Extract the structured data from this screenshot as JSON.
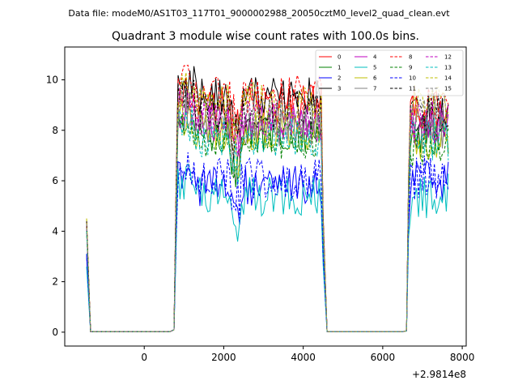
{
  "page": {
    "suptitle": "Data file: modeM0/AS1T03_117T01_9000002988_20050cztM0_level2_quad_clean.evt"
  },
  "chart_data": {
    "type": "line",
    "title": "Quadrant 3 module wise count rates with 100.0s bins.",
    "xlabel": "",
    "ylabel": "",
    "offset_label": "+2.9814e8",
    "xlim": [
      -2000,
      8100
    ],
    "ylim": [
      -0.55,
      11.3
    ],
    "xticks": [
      0,
      2000,
      4000,
      6000,
      8000
    ],
    "xtick_labels": [
      "0",
      "2000",
      "4000",
      "6000",
      "8000"
    ],
    "yticks": [
      0,
      2,
      4,
      6,
      8,
      10
    ],
    "ytick_labels": [
      "0",
      "2",
      "4",
      "6",
      "8",
      "10"
    ],
    "legend_position": "upper-right",
    "x": {
      "seg1": [
        -1450,
        -1350,
        -1250,
        -1150,
        -1050,
        -950,
        -850,
        -750,
        -650,
        -550,
        -450,
        -350,
        -250,
        -150,
        -50,
        50,
        150,
        250,
        350,
        450,
        550,
        650,
        750
      ],
      "seg2": [
        750,
        800,
        850,
        900,
        950,
        1000,
        1050,
        1100,
        1150,
        1200,
        1250,
        1300,
        1350,
        1400,
        1450,
        1500,
        1550,
        1600,
        1650,
        1700,
        1750,
        1800,
        1850,
        1900,
        1950,
        2000,
        2050,
        2100,
        2150,
        2200,
        2250,
        2300,
        2350,
        2400,
        2450,
        2500,
        2550,
        2600,
        2650,
        2700,
        2750,
        2800,
        2850,
        2900,
        2950,
        3000,
        3050,
        3100,
        3150,
        3200,
        3250,
        3300,
        3350,
        3400,
        3450,
        3500,
        3550,
        3600,
        3650,
        3700,
        3750,
        3800,
        3850,
        3900,
        3950,
        4000,
        4050,
        4100,
        4150,
        4200,
        4250,
        4300,
        4350,
        4400,
        4450,
        4500
      ],
      "seg3": [
        4500,
        4600,
        4700,
        4800,
        4900,
        5000,
        5100,
        5200,
        5300,
        5400,
        5500,
        5600,
        5700,
        5800,
        5900,
        6000,
        6100,
        6200,
        6300,
        6400,
        6500,
        6600
      ],
      "seg4": [
        6600,
        6650,
        6700,
        6750,
        6800,
        6850,
        6900,
        6950,
        7000,
        7050,
        7100,
        7150,
        7200,
        7250,
        7300,
        7350,
        7400,
        7450,
        7500,
        7550,
        7600,
        7650
      ]
    },
    "series": [
      {
        "name": "0",
        "color": "#ff0000",
        "dash": "solid",
        "start": 4.4,
        "base": 9.0,
        "tail": 8.7
      },
      {
        "name": "1",
        "color": "#008000",
        "dash": "solid",
        "start": 4.2,
        "base": 7.9,
        "tail": 7.7
      },
      {
        "name": "2",
        "color": "#0000ff",
        "dash": "solid",
        "start": 3.0,
        "base": 5.8,
        "tail": 6.0
      },
      {
        "name": "3",
        "color": "#000000",
        "dash": "solid",
        "start": 4.3,
        "base": 9.3,
        "tail": 8.4
      },
      {
        "name": "4",
        "color": "#bf00bf",
        "dash": "solid",
        "start": 4.2,
        "base": 8.3,
        "tail": 8.0
      },
      {
        "name": "5",
        "color": "#00bfbf",
        "dash": "solid",
        "start": 2.6,
        "base": 5.4,
        "tail": 5.4
      },
      {
        "name": "6",
        "color": "#bfbf00",
        "dash": "solid",
        "start": 4.5,
        "base": 8.0,
        "tail": 7.5
      },
      {
        "name": "7",
        "color": "#808080",
        "dash": "solid",
        "start": 4.1,
        "base": 8.1,
        "tail": 8.1
      },
      {
        "name": "8",
        "color": "#ff0000",
        "dash": "dashed",
        "start": 4.4,
        "base": 9.4,
        "tail": 8.9
      },
      {
        "name": "9",
        "color": "#008000",
        "dash": "dashed",
        "start": 4.0,
        "base": 7.6,
        "tail": 7.4
      },
      {
        "name": "10",
        "color": "#0000ff",
        "dash": "dashed",
        "start": 3.1,
        "base": 6.1,
        "tail": 6.1
      },
      {
        "name": "11",
        "color": "#000000",
        "dash": "dashed",
        "start": 4.4,
        "base": 8.8,
        "tail": 8.8
      },
      {
        "name": "12",
        "color": "#bf00bf",
        "dash": "dashed",
        "start": 4.3,
        "base": 8.4,
        "tail": 8.3
      },
      {
        "name": "13",
        "color": "#00bfbf",
        "dash": "dashed",
        "start": 4.0,
        "base": 7.7,
        "tail": 7.7
      },
      {
        "name": "14",
        "color": "#bfbf00",
        "dash": "dashed",
        "start": 4.5,
        "base": 9.1,
        "tail": 8.9
      },
      {
        "name": "15",
        "color": "#808080",
        "dash": "dashed",
        "start": 4.3,
        "base": 8.6,
        "tail": 8.6
      }
    ]
  }
}
